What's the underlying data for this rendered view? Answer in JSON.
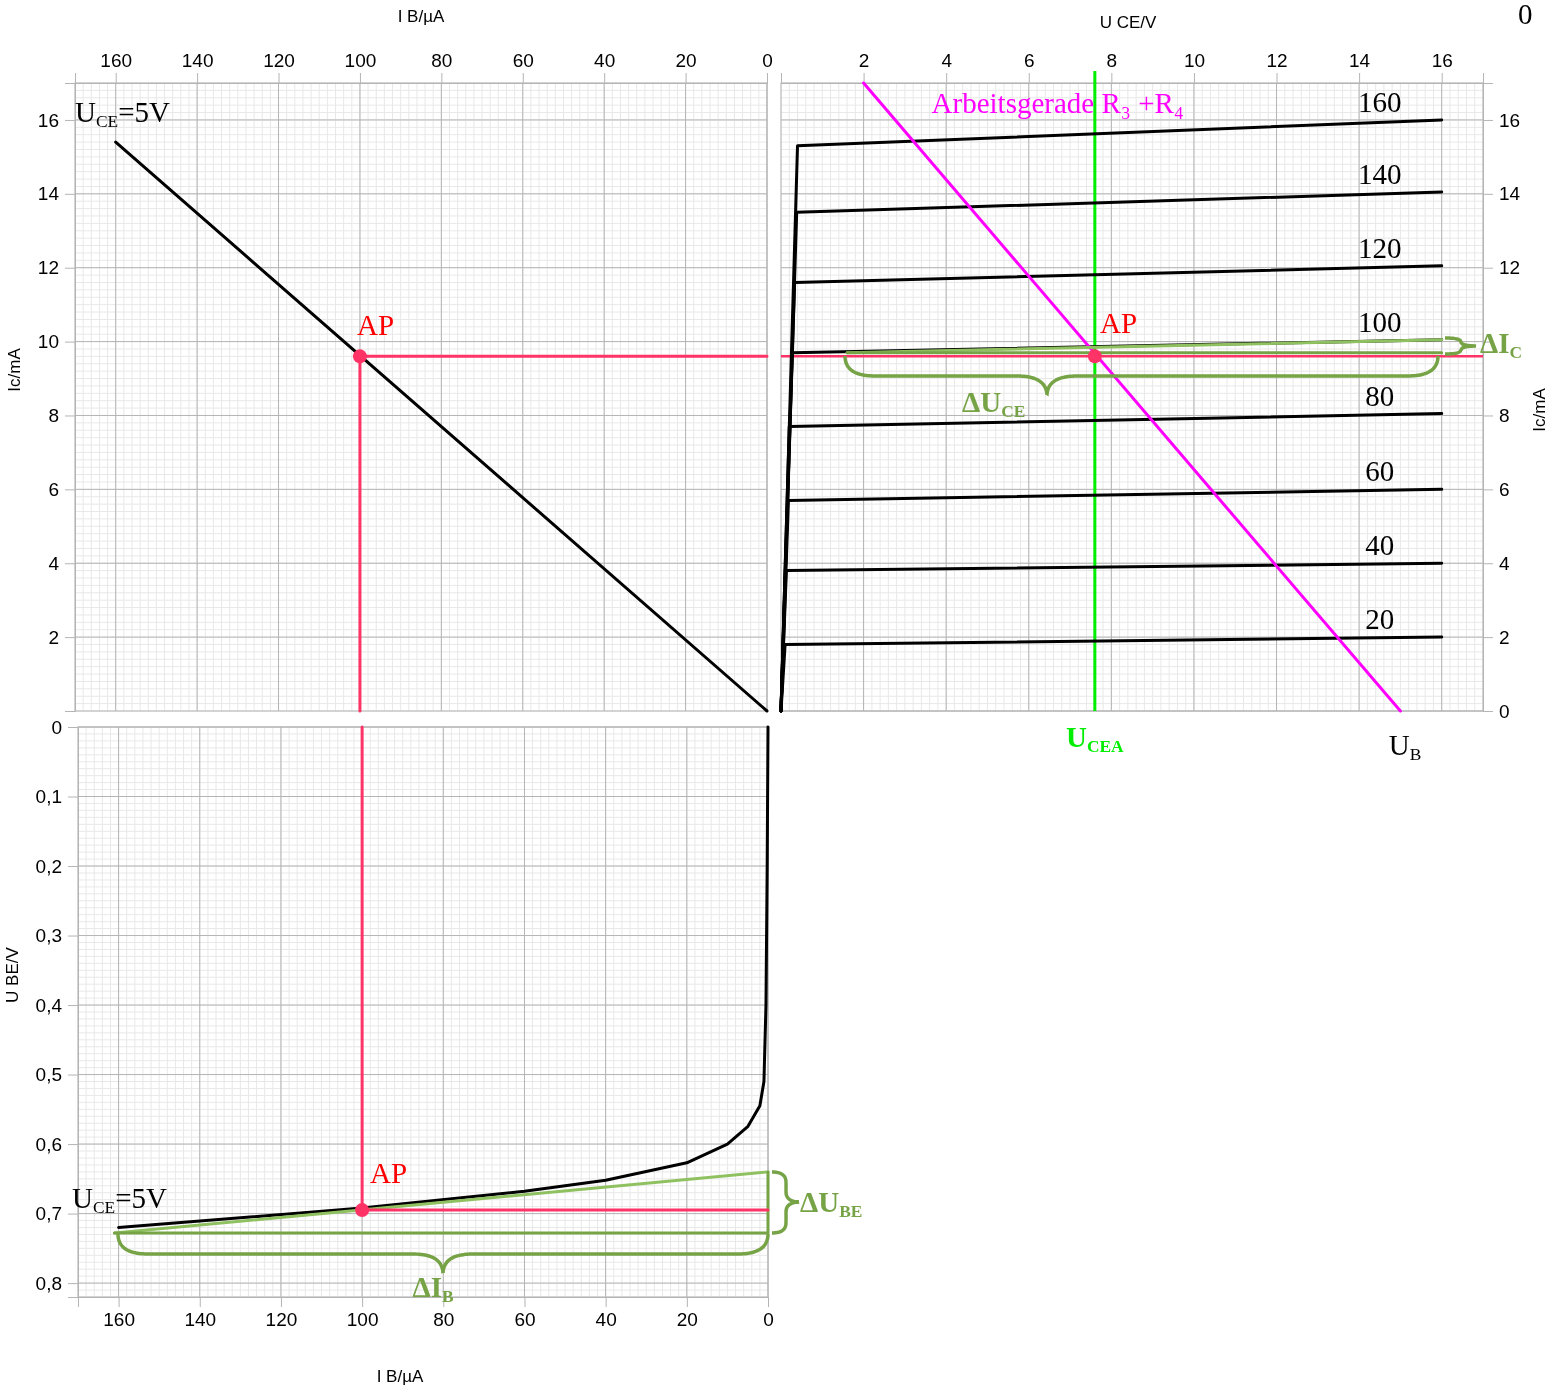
{
  "chart_data": [
    {
      "type": "line",
      "xlabel": "I B/µA",
      "ylabel": "Ic/mA",
      "xlim": [
        170,
        0
      ],
      "xticks": [
        160,
        140,
        120,
        100,
        80,
        60,
        40,
        20,
        0
      ],
      "ylim": [
        0,
        17
      ],
      "yticks": [
        2,
        4,
        6,
        8,
        10,
        12,
        14,
        16
      ],
      "grid": true,
      "series": [
        {
          "color": "#000000",
          "x": [
            160,
            0
          ],
          "values": [
            15.4,
            0
          ]
        },
        {
          "color": "#ff3366",
          "x": [
            100,
            100,
            0
          ],
          "values": [
            0,
            9.6,
            9.6
          ]
        },
        {
          "type": "scatter",
          "color": "#ff3366",
          "x": [
            100
          ],
          "values": [
            9.6
          ]
        }
      ],
      "annotations": [
        "U$_{CE}$=5V",
        "AP"
      ]
    },
    {
      "type": "line",
      "xlabel": "U CE/V",
      "ylabel": "Ic/mA",
      "xlim": [
        0,
        17
      ],
      "xticks": [
        2,
        4,
        6,
        8,
        10,
        12,
        14,
        16
      ],
      "ylim": [
        0,
        17
      ],
      "yticks": [
        0,
        2,
        4,
        6,
        8,
        {
          "value": 10,
          "label": null
        },
        12,
        14,
        16
      ],
      "grid": true,
      "series": [
        {
          "name": "160",
          "color": "#000000",
          "x": [
            0,
            0.4,
            16
          ],
          "values": [
            0,
            15.3,
            16.0
          ]
        },
        {
          "name": "140",
          "color": "#000000",
          "x": [
            0,
            0.38,
            16
          ],
          "values": [
            0,
            13.5,
            14.05
          ]
        },
        {
          "name": "120",
          "color": "#000000",
          "x": [
            0,
            0.33,
            16
          ],
          "values": [
            0,
            11.6,
            12.05
          ]
        },
        {
          "name": "100",
          "color": "#000000",
          "x": [
            0,
            0.27,
            16
          ],
          "values": [
            0,
            9.7,
            10.05
          ]
        },
        {
          "name": "80",
          "color": "#000000",
          "x": [
            0,
            0.2,
            16
          ],
          "values": [
            0,
            7.7,
            8.05
          ]
        },
        {
          "name": "60",
          "color": "#000000",
          "x": [
            0,
            0.18,
            16
          ],
          "values": [
            0,
            5.7,
            6.0
          ]
        },
        {
          "name": "40",
          "color": "#000000",
          "x": [
            0,
            0.13,
            16
          ],
          "values": [
            0,
            3.8,
            4.0
          ]
        },
        {
          "name": "20",
          "color": "#000000",
          "x": [
            0,
            0.1,
            16
          ],
          "values": [
            0,
            1.8,
            2.0
          ]
        },
        {
          "name": "Arbeitsgerade R₃ +R₄",
          "color": "#ff00ff",
          "x": [
            2,
            15
          ],
          "values": [
            17,
            0
          ]
        },
        {
          "color": "#8fc160",
          "x": [
            1.6,
            16
          ],
          "values": [
            9.7,
            10.05
          ]
        },
        {
          "color": "#77a347",
          "x": [
            1.6,
            16
          ],
          "values": [
            9.7,
            9.7
          ]
        },
        {
          "type": "scatter",
          "color": "#ff3366",
          "x": [
            7.6
          ],
          "values": [
            9.6
          ]
        }
      ],
      "ref_lines": [
        {
          "axis": "y",
          "value": 9.6,
          "color": "#ff3366"
        },
        {
          "axis": "x",
          "value": 7.6,
          "label": "U$_{CEA}$",
          "color": "#00ee00"
        }
      ],
      "annotations": [
        "AP",
        "ΔU$_{CE}$",
        "ΔI$_{C}$",
        "U$_{B}$",
        "0"
      ]
    },
    {
      "type": "line",
      "xlabel": "I B/µA",
      "ylabel": "U BE/V",
      "xlim": [
        170,
        0
      ],
      "xticks": [
        160,
        140,
        120,
        100,
        80,
        60,
        40,
        20,
        0
      ],
      "ylim": [
        0.82,
        0
      ],
      "yticks": [
        0,
        {
          "value": 0.1,
          "label": "0,1"
        },
        {
          "value": 0.2,
          "label": "0,2"
        },
        {
          "value": 0.3,
          "label": "0,3"
        },
        {
          "value": 0.4,
          "label": "0,4"
        },
        {
          "value": 0.5,
          "label": "0,5"
        },
        {
          "value": 0.6,
          "label": "0,6"
        },
        {
          "value": 0.7,
          "label": "0,7"
        },
        {
          "value": 0.8,
          "label": "0,8"
        }
      ],
      "grid": true,
      "series": [
        {
          "color": "#000000",
          "x": [
            160,
            100,
            60,
            40,
            20,
            10,
            5,
            2,
            1,
            0.5,
            0.2,
            0
          ],
          "values": [
            0.72,
            0.692,
            0.668,
            0.652,
            0.627,
            0.6,
            0.575,
            0.545,
            0.51,
            0.4,
            0.2,
            0
          ]
        },
        {
          "color": "#8fc160",
          "x": [
            161,
            0
          ],
          "values": [
            0.728,
            0.64
          ]
        },
        {
          "color": "#77a347",
          "x": [
            161,
            0,
            0
          ],
          "values": [
            0.728,
            0.728,
            0.64
          ]
        },
        {
          "color": "#ff3366",
          "x": [
            100,
            100,
            0
          ],
          "values": [
            0,
            0.695,
            0.695
          ]
        },
        {
          "type": "scatter",
          "color": "#ff3366",
          "x": [
            100
          ],
          "values": [
            0.695
          ]
        }
      ],
      "annotations": [
        "U$_{CE}$=5V",
        "AP",
        "ΔI$_{B}$",
        "ΔU$_{BE}$"
      ]
    }
  ]
}
